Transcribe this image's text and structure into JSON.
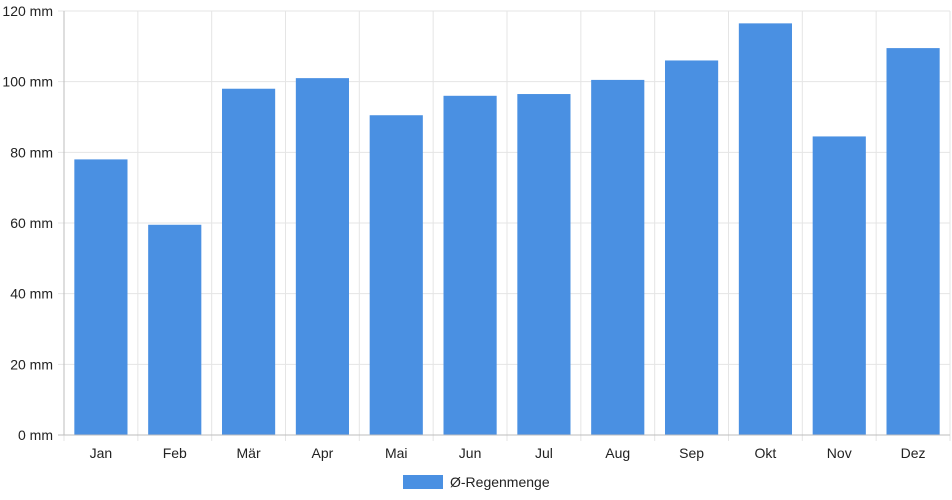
{
  "chart_data": {
    "type": "bar",
    "categories": [
      "Jan",
      "Feb",
      "Mär",
      "Apr",
      "Mai",
      "Jun",
      "Jul",
      "Aug",
      "Sep",
      "Okt",
      "Nov",
      "Dez"
    ],
    "series": [
      {
        "name": "Ø-Regenmenge",
        "values": [
          78,
          59.5,
          98,
          101,
          90.5,
          96,
          96.5,
          100.5,
          106,
          116.5,
          84.5,
          109.5
        ]
      }
    ],
    "y_tick_labels": [
      "0 mm",
      "20 mm",
      "40 mm",
      "60 mm",
      "80 mm",
      "100 mm",
      "120 mm"
    ],
    "y_ticks": [
      0,
      20,
      40,
      60,
      80,
      100,
      120
    ],
    "ylim": [
      0,
      120
    ],
    "unit": "mm",
    "grid": true,
    "legend_position": "bottom-center",
    "colors": {
      "bar": "#4a90e2",
      "grid": "#e5e5e5",
      "axis": "#bdbdbd"
    }
  }
}
